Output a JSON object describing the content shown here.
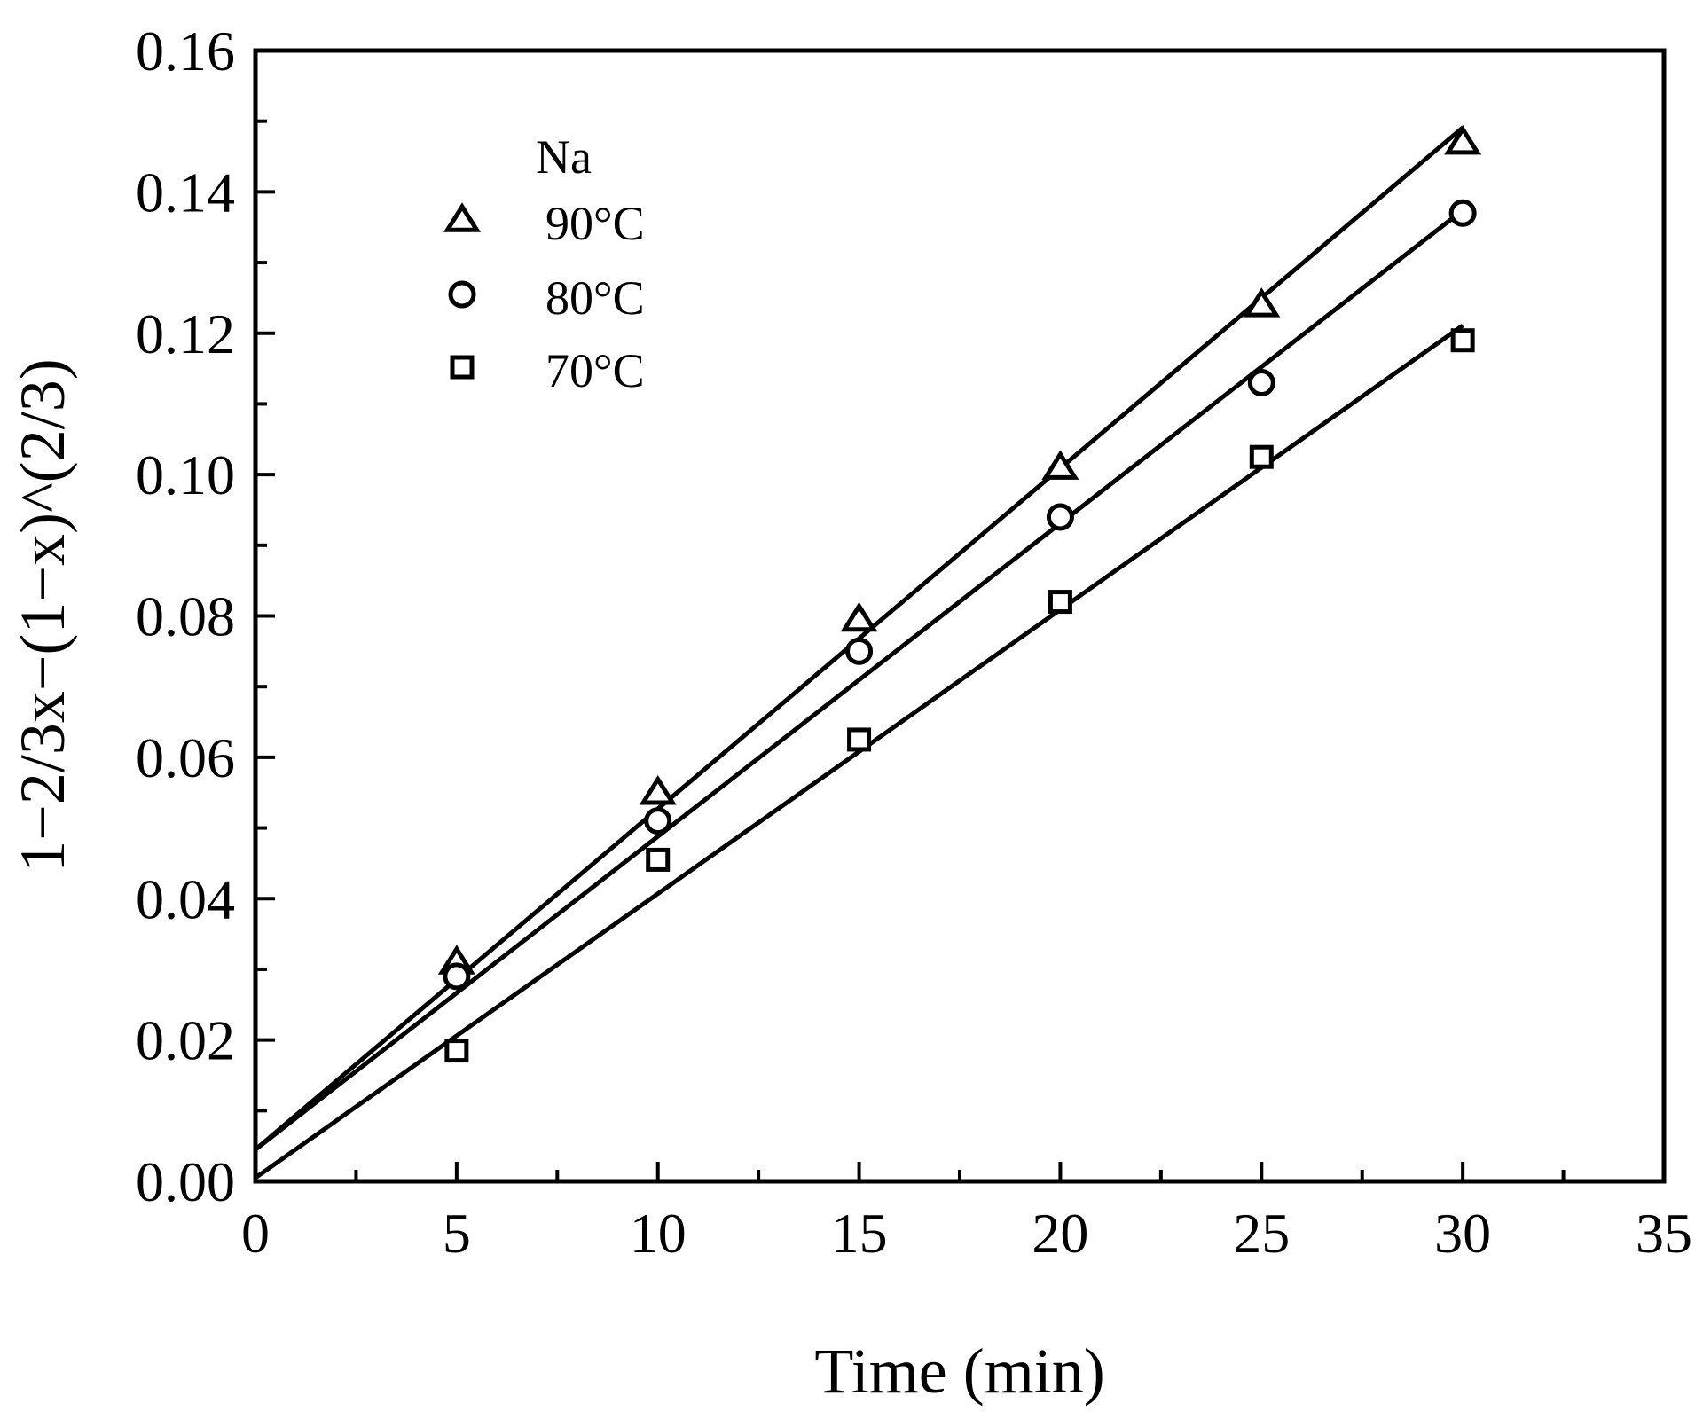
{
  "chart_data": {
    "type": "scatter",
    "xlabel": "Time (min)",
    "ylabel": "1−2/3x−(1−x)^(2/3)",
    "xlim": [
      0,
      35
    ],
    "ylim": [
      0,
      0.16
    ],
    "xticks": [
      "0",
      "5",
      "10",
      "15",
      "20",
      "25",
      "30",
      "35"
    ],
    "yticks": [
      "0.00",
      "0.02",
      "0.04",
      "0.06",
      "0.08",
      "0.10",
      "0.12",
      "0.14",
      "0.16"
    ],
    "legend": {
      "title": "Na",
      "position": "top-left"
    },
    "series": [
      {
        "name": "90°C",
        "marker": "triangle",
        "x": [
          5,
          10,
          15,
          20,
          25,
          30
        ],
        "y": [
          0.031,
          0.055,
          0.0795,
          0.101,
          0.124,
          0.147
        ],
        "fit": {
          "slope": 0.00482,
          "intercept": 0.0045
        }
      },
      {
        "name": "80°C",
        "marker": "circle",
        "x": [
          5,
          10,
          15,
          20,
          25,
          30
        ],
        "y": [
          0.029,
          0.051,
          0.075,
          0.094,
          0.113,
          0.137
        ],
        "fit": {
          "slope": 0.00443,
          "intercept": 0.0045
        }
      },
      {
        "name": "70°C",
        "marker": "square",
        "x": [
          5,
          10,
          15,
          20,
          25,
          30
        ],
        "y": [
          0.0185,
          0.0455,
          0.0625,
          0.082,
          0.1025,
          0.119
        ],
        "fit": {
          "slope": 0.00402,
          "intercept": 0.0005
        }
      }
    ]
  }
}
